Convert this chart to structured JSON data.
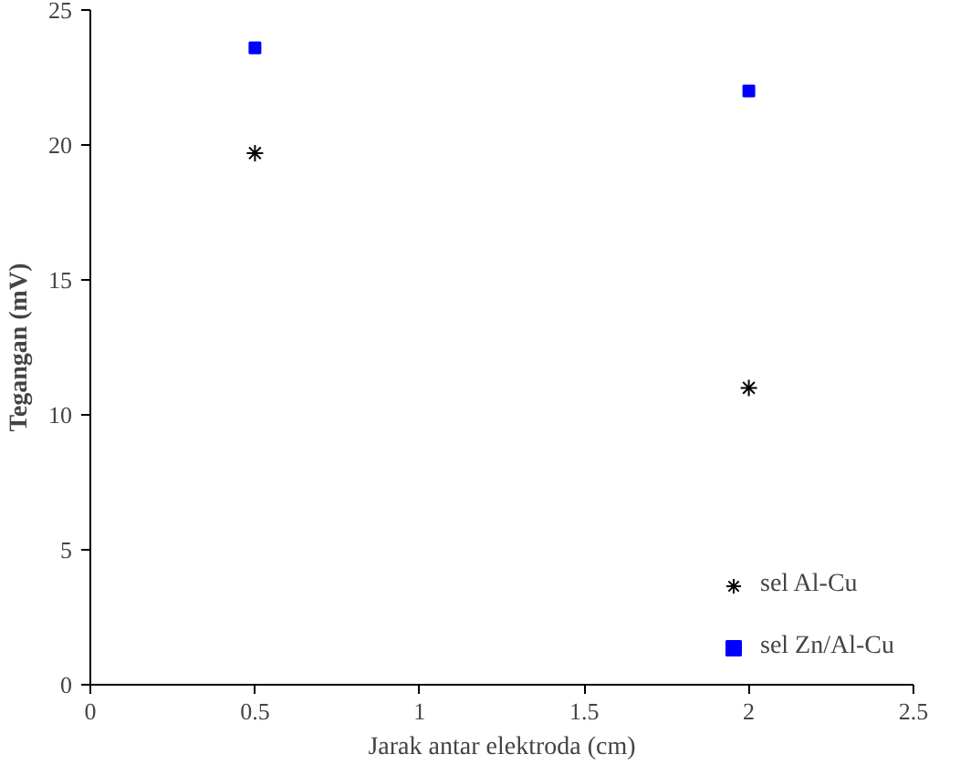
{
  "chart_data": {
    "type": "scatter",
    "xlabel": "Jarak antar elektroda (cm)",
    "ylabel": "Tegangan (mV)",
    "xlim": [
      0,
      2.5
    ],
    "xticks": [
      0,
      0.5,
      1,
      1.5,
      2,
      2.5
    ],
    "ylim": [
      0,
      25
    ],
    "yticks": [
      0,
      5,
      10,
      15,
      20,
      25
    ],
    "grid": false,
    "legend": "bottom right",
    "x": [
      0.5,
      2
    ],
    "series": [
      {
        "name": "sel Al-Cu",
        "color": "#000000",
        "marker": "cross",
        "values": [
          19.7,
          11.0
        ]
      },
      {
        "name": "sel Zn/Al-Cu",
        "color": "#0000ff",
        "marker": "square",
        "values": [
          23.6,
          22.0
        ]
      }
    ]
  }
}
